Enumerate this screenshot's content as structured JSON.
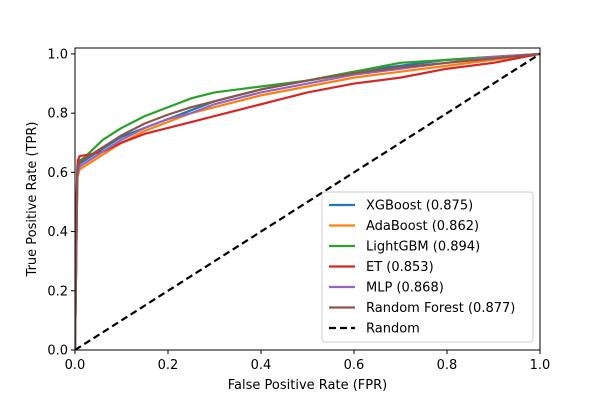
{
  "chart_data": {
    "type": "line",
    "title": "",
    "xlabel": "False Positive Rate (FPR)",
    "ylabel": "True Positive Rate (TPR)",
    "xlim": [
      0.0,
      1.0
    ],
    "ylim": [
      0.0,
      1.02
    ],
    "xticks": [
      "0.0",
      "0.2",
      "0.4",
      "0.6",
      "0.8",
      "1.0"
    ],
    "yticks": [
      "0.0",
      "0.2",
      "0.4",
      "0.6",
      "0.8",
      "1.0"
    ],
    "grid": false,
    "legend_position": "bottom-right",
    "series": [
      {
        "name": "XGBoost (0.875)",
        "color": "#1f77b4",
        "style": "solid",
        "x": [
          0,
          0.005,
          0.01,
          0.02,
          0.04,
          0.06,
          0.08,
          0.1,
          0.15,
          0.2,
          0.25,
          0.3,
          0.35,
          0.4,
          0.5,
          0.6,
          0.7,
          0.8,
          0.9,
          1.0
        ],
        "y": [
          0,
          0.6,
          0.63,
          0.64,
          0.66,
          0.68,
          0.7,
          0.72,
          0.75,
          0.78,
          0.81,
          0.84,
          0.86,
          0.88,
          0.91,
          0.94,
          0.96,
          0.98,
          0.99,
          1.0
        ]
      },
      {
        "name": "AdaBoost (0.862)",
        "color": "#ff7f0e",
        "style": "solid",
        "x": [
          0,
          0.005,
          0.01,
          0.02,
          0.04,
          0.06,
          0.08,
          0.1,
          0.15,
          0.2,
          0.25,
          0.3,
          0.35,
          0.4,
          0.5,
          0.6,
          0.7,
          0.8,
          0.9,
          1.0
        ],
        "y": [
          0,
          0.58,
          0.61,
          0.62,
          0.64,
          0.66,
          0.68,
          0.7,
          0.74,
          0.77,
          0.8,
          0.82,
          0.84,
          0.86,
          0.89,
          0.92,
          0.94,
          0.96,
          0.98,
          1.0
        ]
      },
      {
        "name": "LightGBM (0.894)",
        "color": "#2ca02c",
        "style": "solid",
        "x": [
          0,
          0.005,
          0.01,
          0.02,
          0.04,
          0.06,
          0.08,
          0.1,
          0.15,
          0.2,
          0.25,
          0.3,
          0.35,
          0.4,
          0.5,
          0.6,
          0.7,
          0.8,
          0.9,
          1.0
        ],
        "y": [
          0,
          0.62,
          0.64,
          0.65,
          0.68,
          0.71,
          0.73,
          0.75,
          0.79,
          0.82,
          0.85,
          0.87,
          0.88,
          0.89,
          0.91,
          0.94,
          0.97,
          0.98,
          0.99,
          1.0
        ]
      },
      {
        "name": "ET (0.853)",
        "color": "#d62728",
        "style": "solid",
        "x": [
          0,
          0.003,
          0.006,
          0.01,
          0.03,
          0.06,
          0.1,
          0.15,
          0.2,
          0.25,
          0.3,
          0.35,
          0.4,
          0.45,
          0.5,
          0.6,
          0.7,
          0.8,
          0.9,
          1.0
        ],
        "y": [
          0,
          0.5,
          0.64,
          0.655,
          0.66,
          0.67,
          0.7,
          0.73,
          0.75,
          0.77,
          0.79,
          0.81,
          0.83,
          0.85,
          0.87,
          0.9,
          0.92,
          0.95,
          0.97,
          1.0
        ]
      },
      {
        "name": "MLP (0.868)",
        "color": "#9467bd",
        "style": "solid",
        "x": [
          0,
          0.005,
          0.01,
          0.02,
          0.04,
          0.06,
          0.08,
          0.1,
          0.15,
          0.2,
          0.25,
          0.3,
          0.35,
          0.4,
          0.5,
          0.6,
          0.7,
          0.8,
          0.9,
          1.0
        ],
        "y": [
          0,
          0.59,
          0.62,
          0.63,
          0.65,
          0.67,
          0.69,
          0.71,
          0.75,
          0.78,
          0.8,
          0.83,
          0.85,
          0.87,
          0.9,
          0.93,
          0.95,
          0.97,
          0.99,
          1.0
        ]
      },
      {
        "name": "Random Forest (0.877)",
        "color": "#8c564b",
        "style": "solid",
        "x": [
          0,
          0.005,
          0.01,
          0.02,
          0.04,
          0.06,
          0.08,
          0.1,
          0.15,
          0.2,
          0.25,
          0.3,
          0.35,
          0.4,
          0.5,
          0.6,
          0.7,
          0.8,
          0.9,
          1.0
        ],
        "y": [
          0,
          0.61,
          0.635,
          0.645,
          0.665,
          0.685,
          0.705,
          0.725,
          0.765,
          0.795,
          0.82,
          0.84,
          0.86,
          0.88,
          0.91,
          0.935,
          0.955,
          0.97,
          0.985,
          1.0
        ]
      },
      {
        "name": "Random",
        "color": "#000000",
        "style": "dashed",
        "x": [
          0,
          1.0
        ],
        "y": [
          0,
          1.0
        ]
      }
    ]
  }
}
